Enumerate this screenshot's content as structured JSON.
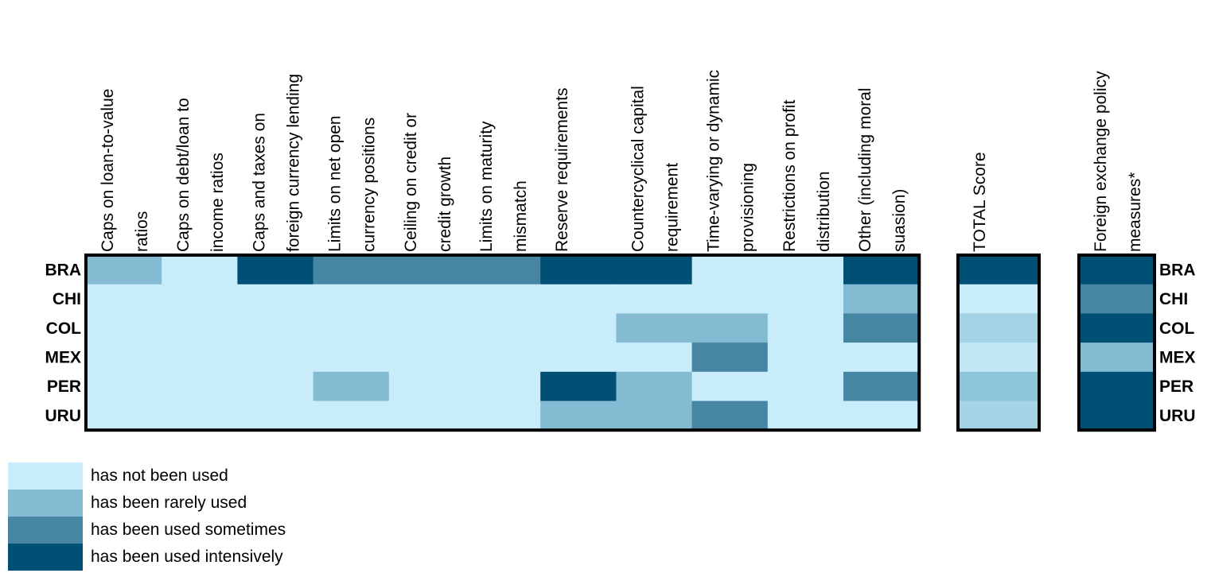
{
  "chart_data": {
    "type": "heatmap",
    "rows": [
      "BRA",
      "CHI",
      "COL",
      "MEX",
      "PER",
      "URU"
    ],
    "main_columns": [
      [
        "Caps on loan-to-value",
        "ratios"
      ],
      [
        "Caps on debt/loan to",
        "income ratios"
      ],
      [
        "Caps and taxes on",
        "foreign currency lending"
      ],
      [
        "Limits on net open",
        "currency positions"
      ],
      [
        "Ceiling on credit or",
        "credit growth"
      ],
      [
        "Limits on maturity",
        "mismatch"
      ],
      [
        "Reserve requirements"
      ],
      [
        "Countercyclical capital",
        "requirement"
      ],
      [
        "Time-varying or dynamic",
        "provisioning"
      ],
      [
        "Restrictions on profit",
        "distribution"
      ],
      [
        "Other (including moral",
        "suasion)"
      ]
    ],
    "main_values": [
      [
        1,
        0,
        3,
        2,
        2,
        2,
        3,
        3,
        0,
        0,
        3
      ],
      [
        0,
        0,
        0,
        0,
        0,
        0,
        0,
        0,
        0,
        0,
        1
      ],
      [
        0,
        0,
        0,
        0,
        0,
        0,
        0,
        1,
        1,
        0,
        2
      ],
      [
        0,
        0,
        0,
        0,
        0,
        0,
        0,
        0,
        2,
        0,
        0
      ],
      [
        0,
        0,
        0,
        1,
        0,
        0,
        3,
        1,
        0,
        0,
        2
      ],
      [
        0,
        0,
        0,
        0,
        0,
        0,
        1,
        1,
        2,
        0,
        0
      ]
    ],
    "total_column": [
      "TOTAL Score"
    ],
    "total_colors": [
      "#005075",
      "#c9ecfa",
      "#a4d3e6",
      "#c2e6f4",
      "#8ec4d9",
      "#a4d3e6"
    ],
    "fx_column": [
      "Foreign exchange policy",
      "measures*"
    ],
    "fx_values": [
      3,
      2,
      3,
      1,
      3,
      3
    ],
    "levels": [
      {
        "label": "has not been used",
        "color": "#c9ecfa"
      },
      {
        "label": "has been rarely used",
        "color": "#85bad3"
      },
      {
        "label": "has been used sometimes",
        "color": "#4686a3"
      },
      {
        "label": "has been used intensively",
        "color": "#005075"
      }
    ]
  }
}
